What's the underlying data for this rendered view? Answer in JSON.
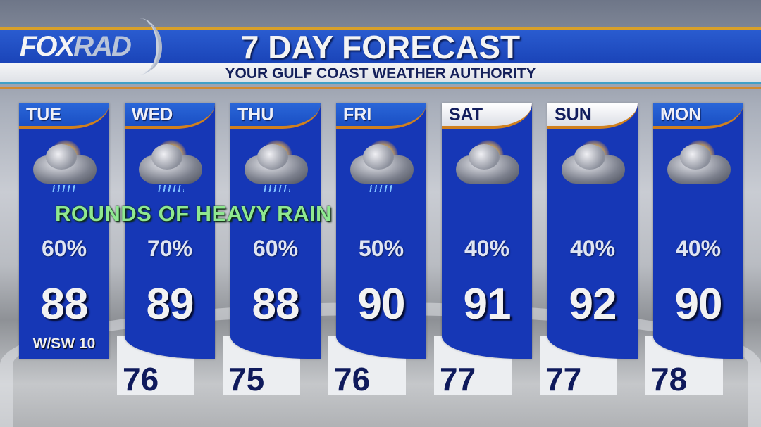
{
  "header": {
    "logo": "FOXRAD",
    "logo_parts": [
      "FOX",
      "RAD"
    ],
    "title": "7 DAY FORECAST",
    "subtitle": "YOUR GULF COAST WEATHER AUTHORITY",
    "colors": {
      "banner_blue": "#1a44b8",
      "accent_orange": "#d0801e",
      "column_blue": "#1637b6"
    }
  },
  "note": "ROUNDS OF HEAVY RAIN",
  "days": [
    {
      "day": "TUE",
      "icon": "sun-thunderstorm",
      "pop": "60%",
      "high": "88",
      "wind": "W/SW 10",
      "low": null,
      "header_style": "blue"
    },
    {
      "day": "WED",
      "icon": "sun-thunderstorm",
      "pop": "70%",
      "high": "89",
      "low": "76",
      "header_style": "blue"
    },
    {
      "day": "THU",
      "icon": "sun-thunderstorm",
      "pop": "60%",
      "high": "88",
      "low": "75",
      "header_style": "blue"
    },
    {
      "day": "FRI",
      "icon": "sun-thunderstorm",
      "pop": "50%",
      "high": "90",
      "low": "76",
      "header_style": "blue"
    },
    {
      "day": "SAT",
      "icon": "sun-cloudy",
      "pop": "40%",
      "high": "91",
      "low": "77",
      "header_style": "white"
    },
    {
      "day": "SUN",
      "icon": "sun-cloudy",
      "pop": "40%",
      "high": "92",
      "low": "77",
      "header_style": "white"
    },
    {
      "day": "MON",
      "icon": "sun-cloudy",
      "pop": "40%",
      "high": "90",
      "low": "78",
      "header_style": "blue"
    }
  ]
}
